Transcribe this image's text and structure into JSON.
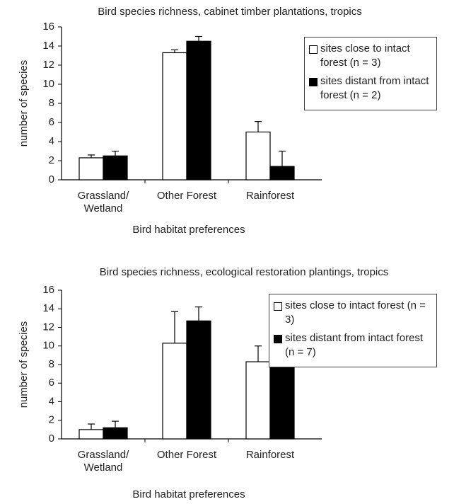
{
  "chart_data": [
    {
      "type": "bar",
      "title": "Bird species richness, cabinet timber plantations, tropics",
      "x_label": "Bird habitat preferences",
      "y_label": "number of species",
      "categories": [
        "Grassland/ Wetland",
        "Other Forest",
        "Rainforest"
      ],
      "series": [
        {
          "name": "sites close to intact forest (n = 3)",
          "color": "#ffffff",
          "values": [
            2.3,
            13.3,
            5.0
          ],
          "errors": [
            0.3,
            0.3,
            1.1
          ]
        },
        {
          "name": "sites distant from intact forest (n = 2)",
          "color": "#000000",
          "values": [
            2.5,
            14.5,
            1.4
          ],
          "errors": [
            0.5,
            0.5,
            1.6
          ]
        }
      ],
      "ylim": [
        0,
        16
      ],
      "yticks": [
        0,
        2,
        4,
        6,
        8,
        10,
        12,
        14,
        16
      ],
      "legend": "upper right"
    },
    {
      "type": "bar",
      "title": "Bird species richness, ecological restoration plantings, tropics",
      "x_label": "Bird habitat preferences",
      "y_label": "number of species",
      "categories": [
        "Grassland/ Wetland",
        "Other Forest",
        "Rainforest"
      ],
      "series": [
        {
          "name": "sites close to intact forest (n = 3)",
          "color": "#ffffff",
          "values": [
            1.0,
            10.3,
            8.3
          ],
          "errors": [
            0.6,
            3.4,
            1.7
          ]
        },
        {
          "name": "sites distant from intact forest (n = 7)",
          "color": "#000000",
          "values": [
            1.2,
            12.7,
            8.2
          ],
          "errors": [
            0.7,
            1.5,
            1.9
          ]
        }
      ],
      "ylim": [
        0,
        16
      ],
      "yticks": [
        0,
        2,
        4,
        6,
        8,
        10,
        12,
        14,
        16
      ],
      "legend": "upper right"
    }
  ]
}
